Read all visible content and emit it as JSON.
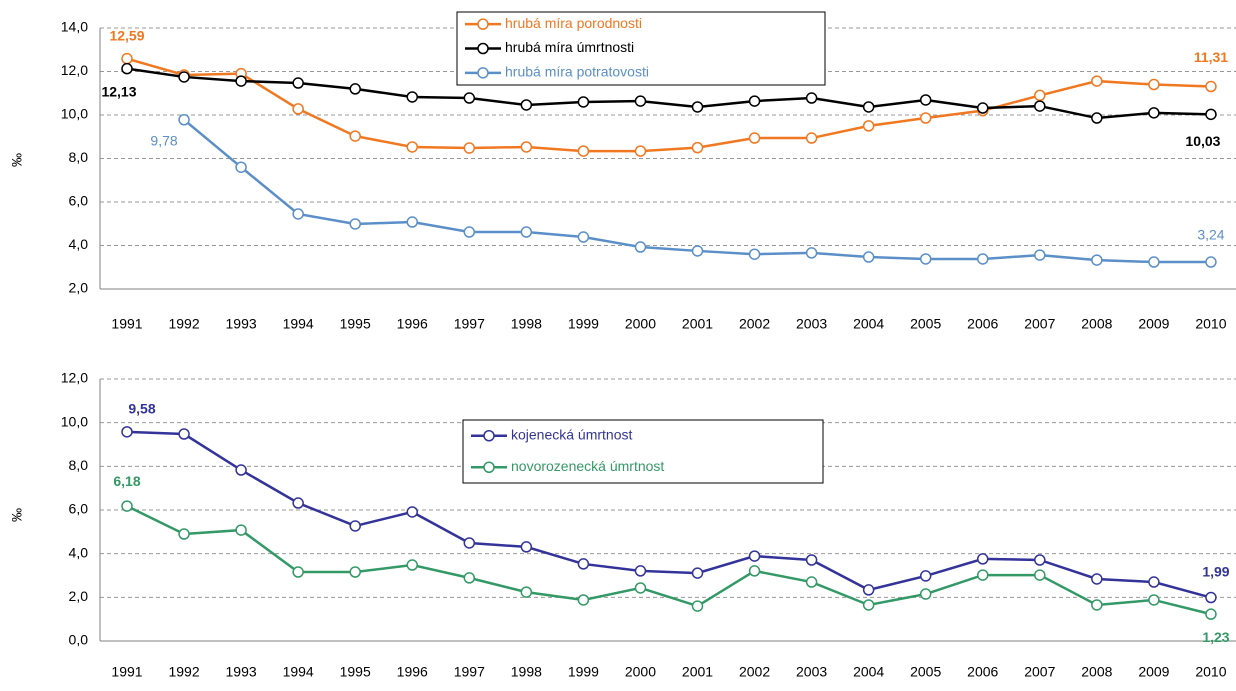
{
  "chart_data": [
    {
      "type": "line",
      "y_label": "‰",
      "legend": "top-center",
      "categories": [
        "1991",
        "1992",
        "1993",
        "1994",
        "1995",
        "1996",
        "1997",
        "1998",
        "1999",
        "2000",
        "2001",
        "2002",
        "2003",
        "2004",
        "2005",
        "2006",
        "2007",
        "2008",
        "2009",
        "2010"
      ],
      "ylim": [
        2,
        14
      ],
      "yticks": [
        {
          "value": 2,
          "label": "2,0"
        },
        {
          "value": 4,
          "label": "4,0"
        },
        {
          "value": 6,
          "label": "6,0"
        },
        {
          "value": 8,
          "label": "8,0"
        },
        {
          "value": 10,
          "label": "10,0"
        },
        {
          "value": 12,
          "label": "12,0"
        },
        {
          "value": 14,
          "label": "14,0"
        }
      ],
      "grid": true,
      "series": [
        {
          "name": "hrubá míra porodnosti",
          "color": "#f07820",
          "values": [
            12.59,
            11.84,
            11.9,
            10.28,
            9.03,
            8.53,
            8.48,
            8.53,
            8.34,
            8.34,
            8.5,
            8.94,
            8.94,
            9.5,
            9.86,
            10.2,
            10.9,
            11.56,
            11.4,
            11.31
          ],
          "value_labels": [
            "12,59",
            null,
            null,
            null,
            null,
            null,
            null,
            null,
            null,
            null,
            null,
            null,
            null,
            null,
            null,
            null,
            null,
            null,
            null,
            "11,31"
          ]
        },
        {
          "name": "hrubá míra úmrtnosti",
          "color": "#000000",
          "values": [
            12.13,
            11.75,
            11.56,
            11.47,
            11.2,
            10.83,
            10.78,
            10.46,
            10.6,
            10.64,
            10.37,
            10.64,
            10.78,
            10.37,
            10.69,
            10.32,
            10.41,
            9.86,
            10.1,
            10.03
          ],
          "value_labels": [
            "12,13",
            null,
            null,
            null,
            null,
            null,
            null,
            null,
            null,
            null,
            null,
            null,
            null,
            null,
            null,
            null,
            null,
            null,
            null,
            "10,03"
          ]
        },
        {
          "name": "hrubá míra potratovosti",
          "color": "#5b8fc8",
          "values": [
            null,
            9.78,
            7.6,
            5.45,
            4.99,
            5.08,
            4.62,
            4.62,
            4.39,
            3.93,
            3.75,
            3.6,
            3.66,
            3.47,
            3.38,
            3.38,
            3.56,
            3.33,
            3.24,
            3.24
          ],
          "value_labels": [
            null,
            "9,78",
            null,
            null,
            null,
            null,
            null,
            null,
            null,
            null,
            null,
            null,
            null,
            null,
            null,
            null,
            null,
            null,
            null,
            "3,24"
          ]
        }
      ]
    },
    {
      "type": "line",
      "y_label": "‰",
      "legend": "center",
      "categories": [
        "1991",
        "1992",
        "1993",
        "1994",
        "1995",
        "1996",
        "1997",
        "1998",
        "1999",
        "2000",
        "2001",
        "2002",
        "2003",
        "2004",
        "2005",
        "2006",
        "2007",
        "2008",
        "2009",
        "2010"
      ],
      "ylim": [
        0,
        12
      ],
      "yticks": [
        {
          "value": 0,
          "label": "0,0"
        },
        {
          "value": 2,
          "label": "2,0"
        },
        {
          "value": 4,
          "label": "4,0"
        },
        {
          "value": 6,
          "label": "6,0"
        },
        {
          "value": 8,
          "label": "8,0"
        },
        {
          "value": 10,
          "label": "10,0"
        },
        {
          "value": 12,
          "label": "12,0"
        }
      ],
      "grid": true,
      "series": [
        {
          "name": "kojenecká úmrtnost",
          "color": "#333399",
          "values": [
            9.58,
            9.48,
            7.83,
            6.32,
            5.27,
            5.91,
            4.49,
            4.31,
            3.53,
            3.21,
            3.11,
            3.89,
            3.71,
            2.34,
            2.98,
            3.76,
            3.71,
            2.84,
            2.7,
            1.99
          ],
          "value_labels": [
            "9,58",
            null,
            null,
            null,
            null,
            null,
            null,
            null,
            null,
            null,
            null,
            null,
            null,
            null,
            null,
            null,
            null,
            null,
            null,
            "1,99"
          ]
        },
        {
          "name": "novorozenecká úmrtnost",
          "color": "#339966",
          "values": [
            6.18,
            4.9,
            5.08,
            3.16,
            3.16,
            3.48,
            2.89,
            2.24,
            1.88,
            2.43,
            1.6,
            3.21,
            2.7,
            1.65,
            2.15,
            3.02,
            3.02,
            1.65,
            1.88,
            1.23
          ],
          "value_labels": [
            "6,18",
            null,
            null,
            null,
            null,
            null,
            null,
            null,
            null,
            null,
            null,
            null,
            null,
            null,
            null,
            null,
            null,
            null,
            null,
            "1,23"
          ]
        }
      ]
    }
  ]
}
